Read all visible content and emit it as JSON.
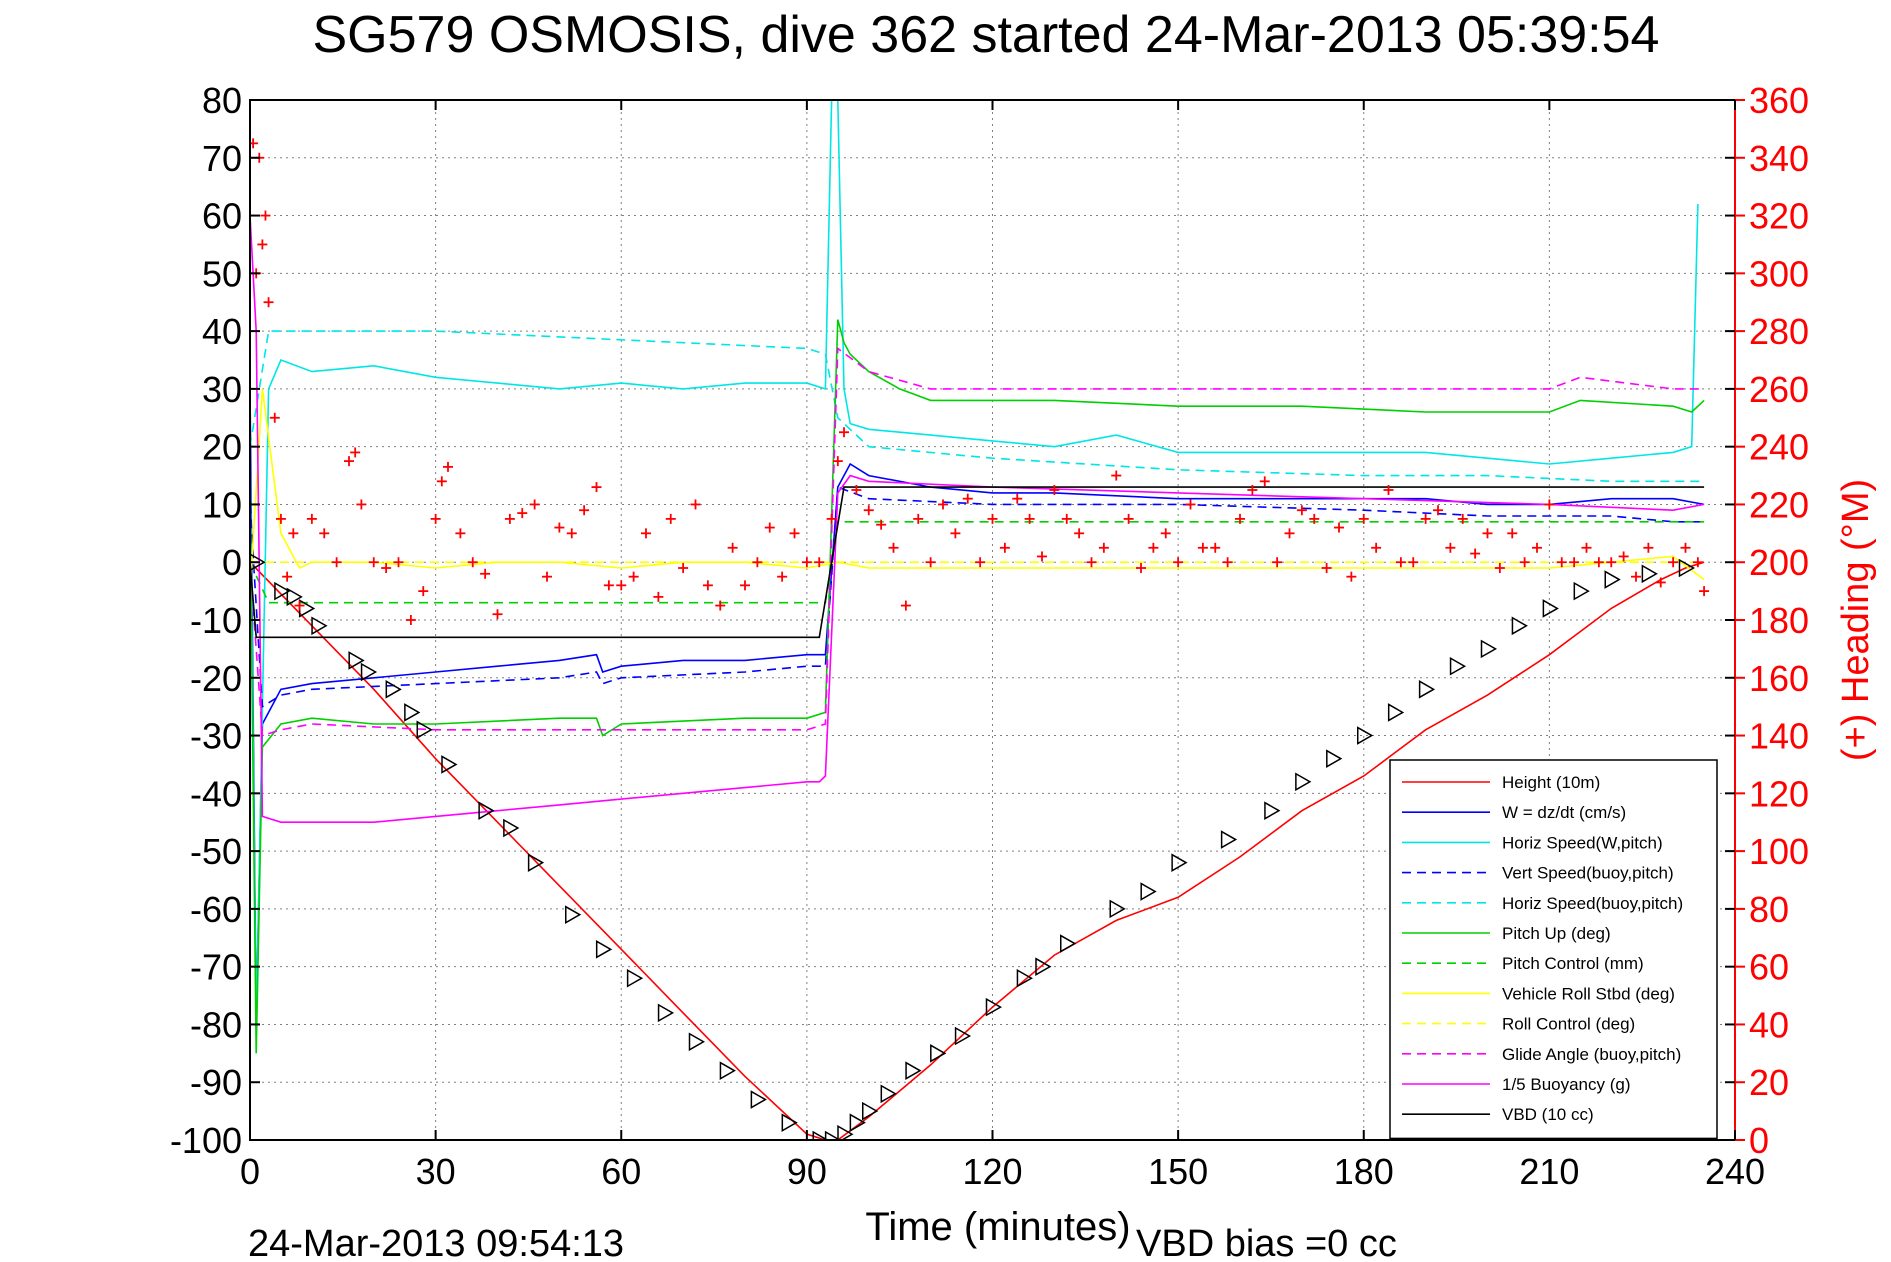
{
  "chart_data": {
    "type": "line",
    "title": "SG579 OSMOSIS, dive 362 started 24-Mar-2013 05:39:54",
    "xlabel": "Time (minutes)",
    "ylabel": "",
    "y2label": "(+) Heading (°M)",
    "xlim": [
      0,
      240
    ],
    "ylim": [
      -100,
      80
    ],
    "y2lim": [
      0,
      360
    ],
    "xticks": [
      "0",
      "30",
      "60",
      "90",
      "120",
      "150",
      "180",
      "210",
      "240"
    ],
    "yticks": [
      "80",
      "70",
      "60",
      "50",
      "40",
      "30",
      "20",
      "10",
      "0",
      "-10",
      "-20",
      "-30",
      "-40",
      "-50",
      "-60",
      "-70",
      "-80",
      "-90",
      "-100"
    ],
    "y2ticks": [
      "360",
      "340",
      "320",
      "300",
      "280",
      "260",
      "240",
      "220",
      "200",
      "180",
      "160",
      "140",
      "120",
      "100",
      "80",
      "60",
      "40",
      "20",
      "0"
    ],
    "grid": true,
    "legend_position": "bottom-right",
    "footer_left": "24-Mar-2013 09:54:13",
    "footer_right": "VBD bias =0 cc",
    "series": [
      {
        "name": "Height (10m)",
        "color": "#ff0000",
        "dash": "solid",
        "x": [
          0,
          10,
          20,
          30,
          40,
          50,
          60,
          70,
          80,
          90,
          93,
          95,
          100,
          110,
          120,
          130,
          140,
          150,
          160,
          170,
          180,
          190,
          200,
          210,
          220,
          228,
          232,
          235
        ],
        "y": [
          0,
          -11,
          -22,
          -34,
          -45,
          -56,
          -67,
          -78,
          -89,
          -99,
          -100,
          -100,
          -96,
          -87,
          -77,
          -68,
          -62,
          -58,
          -51,
          -43,
          -37,
          -29,
          -23,
          -16,
          -8,
          -3,
          -1,
          0
        ]
      },
      {
        "name": "W = dz/dt (cm/s)",
        "color": "#0000ff",
        "dash": "solid",
        "x": [
          0,
          1,
          2,
          5,
          10,
          20,
          30,
          40,
          50,
          56,
          57,
          60,
          70,
          80,
          90,
          93,
          95,
          97,
          100,
          110,
          120,
          130,
          150,
          170,
          190,
          200,
          210,
          220,
          230,
          235
        ],
        "y": [
          30,
          -80,
          -28,
          -22,
          -21,
          -20,
          -19,
          -18,
          -17,
          -16,
          -19,
          -18,
          -17,
          -17,
          -16,
          -16,
          13,
          17,
          15,
          13,
          12,
          12,
          11,
          11,
          11,
          10,
          10,
          11,
          11,
          10
        ]
      },
      {
        "name": "Horiz Speed(W,pitch)",
        "color": "#00e6e6",
        "dash": "solid",
        "x": [
          0,
          1,
          3,
          5,
          10,
          20,
          30,
          40,
          50,
          60,
          70,
          80,
          90,
          93,
          94,
          95,
          96,
          97,
          100,
          110,
          120,
          130,
          140,
          150,
          170,
          190,
          200,
          210,
          220,
          230,
          233,
          234
        ],
        "y": [
          20,
          -80,
          30,
          35,
          33,
          34,
          32,
          31,
          30,
          31,
          30,
          31,
          31,
          30,
          80,
          80,
          30,
          24,
          23,
          22,
          21,
          20,
          22,
          19,
          19,
          19,
          18,
          17,
          18,
          19,
          20,
          62
        ]
      },
      {
        "name": "Vert Speed(buoy,pitch)",
        "color": "#0000ff",
        "dash": "dashed",
        "x": [
          0,
          2,
          5,
          10,
          30,
          50,
          56,
          57,
          60,
          80,
          90,
          93,
          95,
          100,
          120,
          150,
          180,
          200,
          220,
          230,
          235
        ],
        "y": [
          10,
          -25,
          -23,
          -22,
          -21,
          -20,
          -19,
          -21,
          -20,
          -19,
          -18,
          -18,
          13,
          11,
          10,
          10,
          9,
          8,
          8,
          7,
          7
        ]
      },
      {
        "name": "Horiz Speed(buoy,pitch)",
        "color": "#00e6e6",
        "dash": "dashed",
        "x": [
          0,
          3,
          10,
          30,
          50,
          70,
          90,
          93,
          95,
          100,
          120,
          150,
          180,
          200,
          220,
          235
        ],
        "y": [
          20,
          40,
          40,
          40,
          39,
          38,
          37,
          36,
          25,
          20,
          18,
          16,
          15,
          15,
          14,
          14
        ]
      },
      {
        "name": "Pitch Up (deg)",
        "color": "#00d000",
        "dash": "solid",
        "x": [
          0,
          1,
          2,
          5,
          10,
          20,
          30,
          50,
          56,
          57,
          60,
          80,
          90,
          93,
          95,
          96,
          97,
          100,
          105,
          110,
          130,
          150,
          170,
          190,
          210,
          215,
          230,
          233,
          235
        ],
        "y": [
          10,
          -85,
          -32,
          -28,
          -27,
          -28,
          -28,
          -27,
          -27,
          -30,
          -28,
          -27,
          -27,
          -26,
          42,
          38,
          36,
          33,
          30,
          28,
          28,
          27,
          27,
          26,
          26,
          28,
          27,
          26,
          28
        ]
      },
      {
        "name": "Pitch Control (mm)",
        "color": "#00d000",
        "dash": "dashed",
        "x": [
          0,
          3,
          10,
          30,
          50,
          70,
          90,
          93,
          95,
          100,
          120,
          150,
          180,
          210,
          235
        ],
        "y": [
          0,
          -7,
          -7,
          -7,
          -7,
          -7,
          -7,
          -7,
          7,
          7,
          7,
          7,
          7,
          7,
          7
        ]
      },
      {
        "name": "Vehicle Roll Stbd (deg)",
        "color": "#ffff00",
        "dash": "solid",
        "x": [
          0,
          2,
          5,
          8,
          10,
          20,
          30,
          40,
          50,
          60,
          70,
          80,
          90,
          95,
          100,
          110,
          120,
          130,
          140,
          150,
          160,
          170,
          180,
          190,
          200,
          210,
          220,
          230,
          235
        ],
        "y": [
          -5,
          30,
          5,
          -1,
          0,
          0,
          -1,
          0,
          0,
          -1,
          0,
          0,
          -1,
          0,
          -1,
          -1,
          -1,
          -1,
          -1,
          -1,
          -1,
          -1,
          -1,
          -1,
          -1,
          -1,
          0,
          1,
          -3
        ]
      },
      {
        "name": "Roll Control (deg)",
        "color": "#ffff00",
        "dash": "dashed",
        "x": [
          0,
          10,
          50,
          90,
          95,
          120,
          150,
          180,
          210,
          235
        ],
        "y": [
          0,
          0,
          0,
          0,
          0,
          0,
          0,
          0,
          0,
          0
        ]
      },
      {
        "name": "Glide Angle (buoy,pitch)",
        "color": "#ff00ff",
        "dash": "dashed",
        "x": [
          0,
          2,
          5,
          10,
          30,
          50,
          70,
          90,
          93,
          95,
          100,
          110,
          130,
          150,
          180,
          210,
          215,
          230,
          235
        ],
        "y": [
          0,
          -30,
          -29,
          -28,
          -29,
          -29,
          -29,
          -29,
          -28,
          37,
          33,
          30,
          30,
          30,
          30,
          30,
          32,
          30,
          30
        ]
      },
      {
        "name": "1/5 Buoyancy (g)",
        "color": "#ff00ff",
        "dash": "solid",
        "x": [
          0,
          1,
          2,
          5,
          10,
          20,
          30,
          40,
          50,
          60,
          70,
          80,
          90,
          92,
          93,
          95,
          97,
          100,
          120,
          150,
          180,
          210,
          230,
          235
        ],
        "y": [
          60,
          40,
          -44,
          -45,
          -45,
          -45,
          -44,
          -43,
          -42,
          -41,
          -40,
          -39,
          -38,
          -38,
          -37,
          12,
          15,
          14,
          13,
          12,
          11,
          10,
          9,
          10
        ]
      },
      {
        "name": "VBD (10 cc)",
        "color": "#000000",
        "dash": "solid",
        "x": [
          0,
          1,
          2,
          10,
          30,
          50,
          70,
          90,
          92,
          94,
          96,
          100,
          130,
          160,
          190,
          220,
          235
        ],
        "y": [
          0,
          -13,
          -13,
          -13,
          -13,
          -13,
          -13,
          -13,
          -13,
          0,
          13,
          13,
          13,
          13,
          13,
          13,
          13
        ]
      }
    ],
    "heading_series": {
      "name": "(+) Heading",
      "color": "#ff0000",
      "marker": "+",
      "x": [
        0.5,
        1,
        1.5,
        2,
        2.5,
        3,
        4,
        5,
        6,
        7,
        8,
        10,
        12,
        14,
        16,
        17,
        18,
        20,
        22,
        24,
        26,
        28,
        30,
        31,
        32,
        34,
        36,
        38,
        40,
        42,
        44,
        46,
        48,
        50,
        52,
        54,
        56,
        58,
        60,
        62,
        64,
        66,
        68,
        70,
        72,
        74,
        76,
        78,
        80,
        82,
        84,
        86,
        88,
        90,
        92,
        94,
        95,
        96,
        98,
        100,
        102,
        104,
        106,
        108,
        110,
        112,
        114,
        116,
        118,
        120,
        122,
        124,
        126,
        128,
        130,
        132,
        134,
        136,
        138,
        140,
        142,
        144,
        146,
        148,
        150,
        152,
        154,
        156,
        158,
        160,
        162,
        164,
        166,
        168,
        170,
        172,
        174,
        176,
        178,
        180,
        182,
        184,
        186,
        188,
        190,
        192,
        194,
        196,
        198,
        200,
        202,
        204,
        206,
        208,
        210,
        212,
        214,
        216,
        218,
        220,
        222,
        224,
        226,
        228,
        230,
        232,
        234,
        235
      ],
      "y": [
        345,
        300,
        340,
        310,
        320,
        290,
        250,
        215,
        195,
        210,
        185,
        215,
        210,
        200,
        235,
        238,
        220,
        200,
        198,
        200,
        180,
        190,
        215,
        228,
        233,
        210,
        200,
        196,
        182,
        215,
        217,
        220,
        195,
        212,
        210,
        218,
        226,
        192,
        192,
        195,
        210,
        188,
        215,
        198,
        220,
        192,
        185,
        205,
        192,
        200,
        212,
        195,
        210,
        200,
        200,
        215,
        235,
        245,
        225,
        218,
        213,
        205,
        185,
        215,
        200,
        220,
        210,
        222,
        200,
        215,
        205,
        222,
        215,
        202,
        225,
        215,
        210,
        200,
        205,
        230,
        215,
        198,
        205,
        210,
        200,
        220,
        205,
        205,
        200,
        215,
        225,
        228,
        200,
        210,
        218,
        215,
        198,
        212,
        195,
        215,
        205,
        225,
        200,
        200,
        215,
        218,
        205,
        215,
        203,
        210,
        198,
        210,
        200,
        205,
        220,
        200,
        200,
        205,
        200,
        200,
        202,
        195,
        205,
        193,
        200,
        205,
        200,
        190
      ]
    },
    "markers": {
      "name": "triangles",
      "color": "#000000",
      "x": [
        1,
        5,
        7,
        9,
        11,
        17,
        19,
        23,
        26,
        28,
        32,
        38,
        42,
        46,
        52,
        57,
        62,
        67,
        72,
        77,
        82,
        87,
        92,
        94,
        96,
        98,
        100,
        103,
        107,
        111,
        115,
        120,
        125,
        128,
        132,
        140,
        145,
        150,
        158,
        165,
        170,
        175,
        180,
        185,
        190,
        195,
        200,
        205,
        210,
        215,
        220,
        226,
        232
      ],
      "y": [
        0,
        -5,
        -6,
        -8,
        -11,
        -17,
        -19,
        -22,
        -26,
        -29,
        -35,
        -43,
        -46,
        -52,
        -61,
        -67,
        -72,
        -78,
        -83,
        -88,
        -93,
        -97,
        -100,
        -100,
        -99,
        -97,
        -95,
        -92,
        -88,
        -85,
        -82,
        -77,
        -72,
        -70,
        -66,
        -60,
        -57,
        -52,
        -48,
        -43,
        -38,
        -34,
        -30,
        -26,
        -22,
        -18,
        -15,
        -11,
        -8,
        -5,
        -3,
        -2,
        -1
      ]
    }
  }
}
